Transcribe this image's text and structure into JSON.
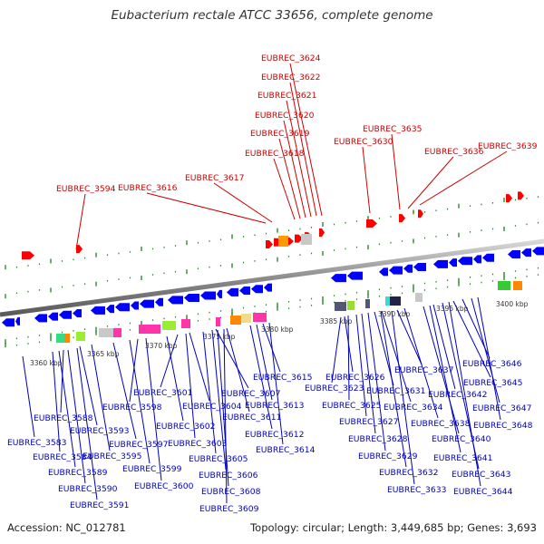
{
  "title": "Eubacterium rectale ATCC 33656, complete genome",
  "footer": {
    "accession": "Accession: NC_012781",
    "summary": "Topology: circular; Length: 3,449,685 bp; Genes: 3,693"
  },
  "colors": {
    "forward_gene": "#ff0000",
    "reverse_gene": "#0000ff",
    "top_label": "#cc0000",
    "bottom_label": "#0000bb",
    "tick": "#2a8a2a",
    "backbone": "#8c8c8c"
  },
  "kbp_labels": [
    "3360 kbp",
    "3365 kbp",
    "3370 kbp",
    "3375 kbp",
    "3380 kbp",
    "3385 kbp",
    "3390 kbp",
    "3395 kbp",
    "3400 kbp"
  ],
  "top_genes": [
    "EUBREC_3624",
    "EUBREC_3622",
    "EUBREC_3621",
    "EUBREC_3620",
    "EUBREC_3619",
    "EUBREC_3618",
    "EUBREC_3617",
    "EUBREC_3616",
    "EUBREC_3594",
    "EUBREC_3635",
    "EUBREC_3630",
    "EUBREC_3636",
    "EUBREC_3639"
  ],
  "bottom_genes": [
    "EUBREC_3615",
    "EUBREC_3613",
    "EUBREC_3612",
    "EUBREC_3614",
    "EUBREC_3611",
    "EUBREC_3607",
    "EUBREC_3604",
    "EUBREC_3601",
    "EUBREC_3598",
    "EUBREC_3602",
    "EUBREC_3603",
    "EUBREC_3605",
    "EUBREC_3606",
    "EUBREC_3608",
    "EUBREC_3609",
    "EUBREC_3600",
    "EUBREC_3599",
    "EUBREC_3597",
    "EUBREC_3595",
    "EUBREC_3593",
    "EUBREC_3588",
    "EUBREC_3584",
    "EUBREC_3583",
    "EUBREC_3589",
    "EUBREC_3590",
    "EUBREC_3591",
    "EUBREC_3626",
    "EUBREC_3623",
    "EUBREC_3625",
    "EUBREC_3627",
    "EUBREC_3628",
    "EUBREC_3629",
    "EUBREC_3632",
    "EUBREC_3633",
    "EUBREC_3631",
    "EUBREC_3634",
    "EUBREC_3637",
    "EUBREC_3638",
    "EUBREC_3640",
    "EUBREC_3641",
    "EUBREC_3642",
    "EUBREC_3643",
    "EUBREC_3644",
    "EUBREC_3645",
    "EUBREC_3646",
    "EUBREC_3647",
    "EUBREC_3648"
  ]
}
